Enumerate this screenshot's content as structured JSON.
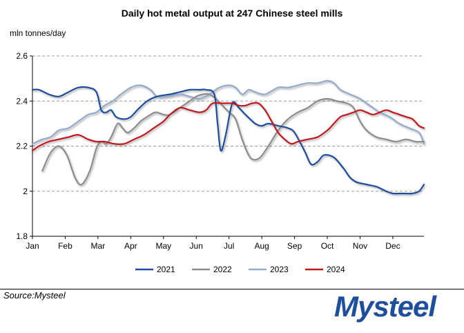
{
  "source": "Source:Mysteel",
  "logo": "Mysteel",
  "colors": {
    "s2021": "#1f4e9c",
    "s2022": "#8c8c8c",
    "s2023": "#94aacb",
    "s2024": "#c0141e",
    "logo": "#1f4e9c",
    "logo_accent": "#c0141e"
  },
  "chart_data": {
    "type": "line",
    "title": "Daily hot metal output at 247 Chinese steel mills",
    "ylabel": "mln tonnes/day",
    "xlabel": "",
    "ylim": [
      1.8,
      2.6
    ],
    "yticks": [
      1.8,
      2,
      2.2,
      2.4,
      2.6
    ],
    "ytick_labels": [
      "1.8",
      "2",
      "2.2",
      "2.4",
      "2.6"
    ],
    "x_unit": "month (1 = Jan)",
    "xlim": [
      1,
      12.95
    ],
    "month_labels": [
      "Jan",
      "Feb",
      "Mar",
      "Apr",
      "May",
      "Jun",
      "Jul",
      "Aug",
      "Sep",
      "Oct",
      "Nov",
      "Dec"
    ],
    "grid": "horizontal dashed",
    "legend_position": "bottom",
    "series": [
      {
        "name": "2021",
        "color": "#1f4e9c",
        "points": [
          [
            1.0,
            2.45
          ],
          [
            1.2,
            2.45
          ],
          [
            1.5,
            2.43
          ],
          [
            1.8,
            2.42
          ],
          [
            2.1,
            2.44
          ],
          [
            2.4,
            2.46
          ],
          [
            2.7,
            2.46
          ],
          [
            2.95,
            2.44
          ],
          [
            3.1,
            2.36
          ],
          [
            3.25,
            2.35
          ],
          [
            3.4,
            2.36
          ],
          [
            3.55,
            2.33
          ],
          [
            3.8,
            2.32
          ],
          [
            4.0,
            2.33
          ],
          [
            4.2,
            2.36
          ],
          [
            4.5,
            2.4
          ],
          [
            4.8,
            2.42
          ],
          [
            5.2,
            2.43
          ],
          [
            5.5,
            2.44
          ],
          [
            5.8,
            2.45
          ],
          [
            6.1,
            2.45
          ],
          [
            6.3,
            2.45
          ],
          [
            6.55,
            2.43
          ],
          [
            6.65,
            2.3
          ],
          [
            6.75,
            2.18
          ],
          [
            6.9,
            2.25
          ],
          [
            7.1,
            2.39
          ],
          [
            7.3,
            2.37
          ],
          [
            7.5,
            2.34
          ],
          [
            7.8,
            2.3
          ],
          [
            8.0,
            2.29
          ],
          [
            8.2,
            2.3
          ],
          [
            8.5,
            2.29
          ],
          [
            8.8,
            2.28
          ],
          [
            9.0,
            2.26
          ],
          [
            9.3,
            2.18
          ],
          [
            9.5,
            2.12
          ],
          [
            9.7,
            2.13
          ],
          [
            9.9,
            2.16
          ],
          [
            10.2,
            2.15
          ],
          [
            10.5,
            2.1
          ],
          [
            10.7,
            2.06
          ],
          [
            10.9,
            2.04
          ],
          [
            11.2,
            2.03
          ],
          [
            11.5,
            2.02
          ],
          [
            11.8,
            2.0
          ],
          [
            12.0,
            1.99
          ],
          [
            12.3,
            1.99
          ],
          [
            12.6,
            1.99
          ],
          [
            12.8,
            2.0
          ],
          [
            12.95,
            2.03
          ]
        ]
      },
      {
        "name": "2022",
        "color": "#8c8c8c",
        "points": [
          [
            1.3,
            2.09
          ],
          [
            1.55,
            2.17
          ],
          [
            1.8,
            2.2
          ],
          [
            2.05,
            2.16
          ],
          [
            2.3,
            2.06
          ],
          [
            2.5,
            2.03
          ],
          [
            2.75,
            2.09
          ],
          [
            2.95,
            2.19
          ],
          [
            3.1,
            2.22
          ],
          [
            3.25,
            2.21
          ],
          [
            3.4,
            2.24
          ],
          [
            3.6,
            2.3
          ],
          [
            3.75,
            2.28
          ],
          [
            3.9,
            2.26
          ],
          [
            4.1,
            2.28
          ],
          [
            4.3,
            2.31
          ],
          [
            4.5,
            2.33
          ],
          [
            4.75,
            2.35
          ],
          [
            5.0,
            2.34
          ],
          [
            5.2,
            2.34
          ],
          [
            5.5,
            2.37
          ],
          [
            5.8,
            2.4
          ],
          [
            6.0,
            2.42
          ],
          [
            6.2,
            2.43
          ],
          [
            6.4,
            2.43
          ],
          [
            6.6,
            2.41
          ],
          [
            6.8,
            2.38
          ],
          [
            7.0,
            2.35
          ],
          [
            7.2,
            2.32
          ],
          [
            7.4,
            2.23
          ],
          [
            7.6,
            2.16
          ],
          [
            7.75,
            2.14
          ],
          [
            7.95,
            2.15
          ],
          [
            8.2,
            2.2
          ],
          [
            8.5,
            2.27
          ],
          [
            8.8,
            2.32
          ],
          [
            9.1,
            2.35
          ],
          [
            9.4,
            2.37
          ],
          [
            9.7,
            2.4
          ],
          [
            10.0,
            2.41
          ],
          [
            10.3,
            2.4
          ],
          [
            10.6,
            2.39
          ],
          [
            10.8,
            2.37
          ],
          [
            11.0,
            2.31
          ],
          [
            11.2,
            2.27
          ],
          [
            11.5,
            2.24
          ],
          [
            11.8,
            2.23
          ],
          [
            12.1,
            2.22
          ],
          [
            12.4,
            2.23
          ],
          [
            12.7,
            2.22
          ],
          [
            12.95,
            2.22
          ]
        ]
      },
      {
        "name": "2023",
        "color": "#94aacb",
        "points": [
          [
            1.0,
            2.21
          ],
          [
            1.3,
            2.23
          ],
          [
            1.55,
            2.24
          ],
          [
            1.8,
            2.27
          ],
          [
            2.1,
            2.28
          ],
          [
            2.4,
            2.31
          ],
          [
            2.7,
            2.34
          ],
          [
            2.95,
            2.35
          ],
          [
            3.2,
            2.38
          ],
          [
            3.45,
            2.4
          ],
          [
            3.7,
            2.43
          ],
          [
            4.0,
            2.46
          ],
          [
            4.3,
            2.47
          ],
          [
            4.6,
            2.45
          ],
          [
            4.8,
            2.42
          ],
          [
            5.1,
            2.42
          ],
          [
            5.5,
            2.43
          ],
          [
            5.8,
            2.42
          ],
          [
            6.1,
            2.41
          ],
          [
            6.4,
            2.43
          ],
          [
            6.7,
            2.46
          ],
          [
            7.0,
            2.47
          ],
          [
            7.2,
            2.46
          ],
          [
            7.4,
            2.43
          ],
          [
            7.6,
            2.45
          ],
          [
            7.8,
            2.44
          ],
          [
            8.1,
            2.43
          ],
          [
            8.5,
            2.46
          ],
          [
            8.8,
            2.46
          ],
          [
            9.1,
            2.47
          ],
          [
            9.4,
            2.48
          ],
          [
            9.7,
            2.48
          ],
          [
            10.0,
            2.49
          ],
          [
            10.2,
            2.48
          ],
          [
            10.4,
            2.45
          ],
          [
            10.7,
            2.43
          ],
          [
            11.0,
            2.41
          ],
          [
            11.3,
            2.38
          ],
          [
            11.6,
            2.35
          ],
          [
            11.9,
            2.33
          ],
          [
            12.2,
            2.3
          ],
          [
            12.5,
            2.28
          ],
          [
            12.8,
            2.26
          ],
          [
            12.95,
            2.21
          ]
        ]
      },
      {
        "name": "2024",
        "color": "#c0141e",
        "points": [
          [
            1.0,
            2.18
          ],
          [
            1.2,
            2.2
          ],
          [
            1.5,
            2.22
          ],
          [
            1.8,
            2.23
          ],
          [
            2.1,
            2.24
          ],
          [
            2.4,
            2.25
          ],
          [
            2.7,
            2.23
          ],
          [
            2.95,
            2.22
          ],
          [
            3.2,
            2.22
          ],
          [
            3.5,
            2.21
          ],
          [
            3.8,
            2.21
          ],
          [
            4.1,
            2.23
          ],
          [
            4.4,
            2.25
          ],
          [
            4.7,
            2.28
          ],
          [
            5.0,
            2.31
          ],
          [
            5.2,
            2.34
          ],
          [
            5.5,
            2.37
          ],
          [
            5.8,
            2.36
          ],
          [
            6.1,
            2.35
          ],
          [
            6.3,
            2.36
          ],
          [
            6.5,
            2.39
          ],
          [
            6.8,
            2.39
          ],
          [
            7.1,
            2.39
          ],
          [
            7.3,
            2.38
          ],
          [
            7.5,
            2.38
          ],
          [
            7.7,
            2.39
          ],
          [
            7.9,
            2.39
          ],
          [
            8.1,
            2.36
          ],
          [
            8.3,
            2.31
          ],
          [
            8.5,
            2.26
          ],
          [
            8.7,
            2.23
          ],
          [
            8.9,
            2.21
          ],
          [
            9.1,
            2.22
          ],
          [
            9.4,
            2.23
          ],
          [
            9.7,
            2.24
          ],
          [
            10.0,
            2.27
          ],
          [
            10.2,
            2.3
          ],
          [
            10.4,
            2.33
          ],
          [
            10.6,
            2.34
          ],
          [
            10.8,
            2.35
          ],
          [
            11.0,
            2.36
          ],
          [
            11.2,
            2.35
          ],
          [
            11.4,
            2.34
          ],
          [
            11.6,
            2.35
          ],
          [
            11.8,
            2.36
          ],
          [
            12.0,
            2.35
          ],
          [
            12.2,
            2.34
          ],
          [
            12.4,
            2.33
          ],
          [
            12.6,
            2.32
          ],
          [
            12.8,
            2.29
          ],
          [
            12.95,
            2.28
          ]
        ]
      }
    ]
  }
}
